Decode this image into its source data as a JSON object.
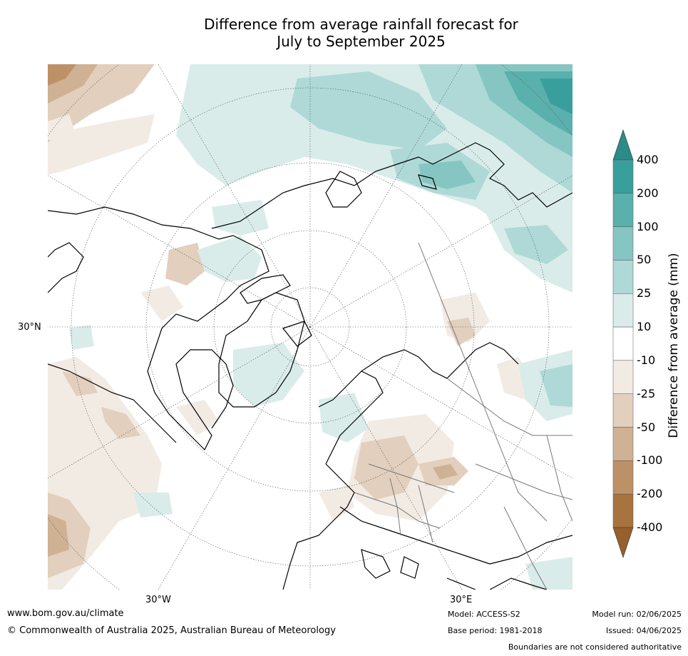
{
  "title_line1": "Difference from average rainfall forecast for",
  "title_line2": "July to September 2025",
  "map": {
    "projection": "north polar stereographic",
    "lon_labels": [
      "30°W",
      "30°E"
    ],
    "lat_labels": [
      "30°N"
    ]
  },
  "colorbar": {
    "title": "Difference from average (mm)",
    "ticks": [
      "400",
      "200",
      "100",
      "50",
      "25",
      "10",
      "-10",
      "-25",
      "-50",
      "-100",
      "-200",
      "-400"
    ],
    "bins": [
      {
        "color": "#2a8b88"
      },
      {
        "color": "#399f9c"
      },
      {
        "color": "#5ab0ad"
      },
      {
        "color": "#85c6c3"
      },
      {
        "color": "#aed9d7"
      },
      {
        "color": "#d9ecea"
      },
      {
        "color": "#ffffff"
      },
      {
        "color": "#f2ebe4"
      },
      {
        "color": "#e2cfbd"
      },
      {
        "color": "#cfb293"
      },
      {
        "color": "#bd9168"
      },
      {
        "color": "#a8733f"
      },
      {
        "color": "#95602b"
      }
    ]
  },
  "footer": {
    "url": "www.bom.gov.au/climate",
    "copyright": "© Commonwealth of Australia 2025, Australian Bureau of Meteorology",
    "model": "Model: ACCESS-S2",
    "base_period": "Base period: 1981-2018",
    "model_run": "Model run: 02/06/2025",
    "issued": "Issued: 04/06/2025",
    "boundaries": "Boundaries are not considered authoritative"
  }
}
